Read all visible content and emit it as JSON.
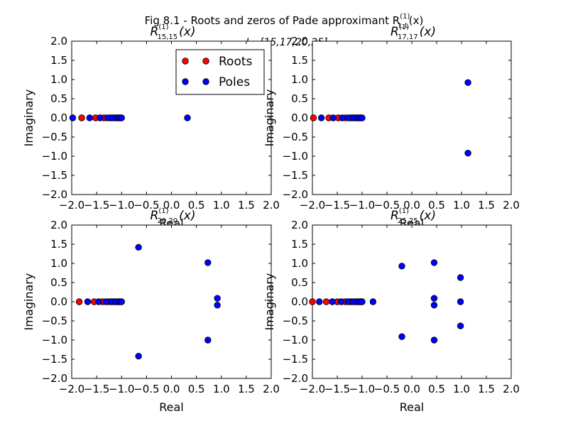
{
  "figure": {
    "suptitle": "Fig 8.1 - Roots and zeros of Pade approximant R",
    "suptitle_super": "(1)",
    "suptitle_sub": "L,L",
    "suptitle_arg": "(x)",
    "subtitle_math": "L=[15,17,20,25]"
  },
  "colors": {
    "roots": "#ff0000",
    "poles": "#0000ff",
    "marker_edge": "#000000",
    "axes": "#000000",
    "background": "#ffffff"
  },
  "legend": {
    "placement": "upper-center of first panel",
    "entries": [
      {
        "label": "Roots",
        "color": "#ff0000"
      },
      {
        "label": "Poles",
        "color": "#0000ff"
      }
    ]
  },
  "chart_data": [
    {
      "type": "scatter",
      "title": "R",
      "title_super": "(1)",
      "title_sub": "15,15",
      "title_arg": "(x)",
      "xlabel": "Real",
      "ylabel": "Imaginary",
      "xlim": [
        -2.0,
        2.0
      ],
      "ylim": [
        -2.0,
        2.0
      ],
      "xticks": [
        "−2.0",
        "−1.5",
        "−1.0",
        "−0.5",
        "0.0",
        "0.5",
        "1.0",
        "1.5",
        "2.0"
      ],
      "yticks": [
        "2.0",
        "1.5",
        "1.0",
        "0.5",
        "0.0",
        "−0.5",
        "−1.0",
        "−1.5",
        "−2.0"
      ],
      "series": [
        {
          "name": "Roots",
          "points": [
            [
              -1.8,
              0
            ],
            [
              -1.52,
              0
            ],
            [
              -1.35,
              0
            ],
            [
              -1.22,
              0
            ],
            [
              -1.13,
              0
            ],
            [
              -1.07,
              0
            ],
            [
              -1.02,
              0
            ]
          ]
        },
        {
          "name": "Poles",
          "points": [
            [
              -1.98,
              0
            ],
            [
              -1.64,
              0
            ],
            [
              -1.43,
              0
            ],
            [
              -1.28,
              0
            ],
            [
              -1.18,
              0
            ],
            [
              -1.1,
              0
            ],
            [
              -1.04,
              0
            ],
            [
              -1.0,
              0
            ],
            [
              0.32,
              0
            ]
          ]
        }
      ]
    },
    {
      "type": "scatter",
      "title": "R",
      "title_super": "(1)",
      "title_sub": "17,17",
      "title_arg": "(x)",
      "xlabel": "Real",
      "ylabel": "Imaginary",
      "xlim": [
        -2.0,
        2.0
      ],
      "ylim": [
        -2.0,
        2.0
      ],
      "xticks": [
        "−2.0",
        "−1.5",
        "−1.0",
        "−0.5",
        "0.0",
        "0.5",
        "1.0",
        "1.5",
        "2.0"
      ],
      "yticks": [
        "2.0",
        "1.5",
        "1.0",
        "0.5",
        "0.0",
        "−0.5",
        "−1.0",
        "−1.5",
        "−2.0"
      ],
      "series": [
        {
          "name": "Roots",
          "points": [
            [
              -1.98,
              0
            ],
            [
              -1.67,
              0
            ],
            [
              -1.48,
              0
            ],
            [
              -1.33,
              0
            ],
            [
              -1.22,
              0
            ],
            [
              -1.14,
              0
            ],
            [
              -1.08,
              0
            ],
            [
              -1.03,
              0
            ]
          ]
        },
        {
          "name": "Poles",
          "points": [
            [
              -1.82,
              0
            ],
            [
              -1.58,
              0
            ],
            [
              -1.4,
              0
            ],
            [
              -1.27,
              0
            ],
            [
              -1.18,
              0
            ],
            [
              -1.11,
              0
            ],
            [
              -1.05,
              0
            ],
            [
              -1.0,
              0
            ],
            [
              1.13,
              0.92
            ],
            [
              1.13,
              -0.92
            ]
          ]
        }
      ]
    },
    {
      "type": "scatter",
      "title": "R",
      "title_super": "(1)",
      "title_sub": "20,20",
      "title_arg": "(x)",
      "xlabel": "Real",
      "ylabel": "Imaginary",
      "xlim": [
        -2.0,
        2.0
      ],
      "ylim": [
        -2.0,
        2.0
      ],
      "xticks": [
        "−2.0",
        "−1.5",
        "−1.0",
        "−0.5",
        "0.0",
        "0.5",
        "1.0",
        "1.5",
        "2.0"
      ],
      "yticks": [
        "2.0",
        "1.5",
        "1.0",
        "0.5",
        "0.0",
        "−0.5",
        "−1.0",
        "−1.5",
        "−2.0"
      ],
      "series": [
        {
          "name": "Roots",
          "points": [
            [
              -1.85,
              0
            ],
            [
              -1.55,
              0
            ],
            [
              -1.38,
              0
            ],
            [
              -1.25,
              0
            ],
            [
              -1.15,
              0
            ],
            [
              -1.08,
              0
            ],
            [
              -1.03,
              0
            ]
          ]
        },
        {
          "name": "Poles",
          "points": [
            [
              -1.68,
              0
            ],
            [
              -1.46,
              0
            ],
            [
              -1.31,
              0
            ],
            [
              -1.2,
              0
            ],
            [
              -1.12,
              0
            ],
            [
              -1.05,
              0
            ],
            [
              -1.0,
              0
            ],
            [
              -0.66,
              1.42
            ],
            [
              -0.66,
              -1.42
            ],
            [
              0.73,
              1.02
            ],
            [
              0.73,
              -1.0
            ],
            [
              0.92,
              0.09
            ],
            [
              0.92,
              -0.09
            ]
          ]
        }
      ]
    },
    {
      "type": "scatter",
      "title": "R",
      "title_super": "(1)",
      "title_sub": "25,25",
      "title_arg": "(x)",
      "xlabel": "Real",
      "ylabel": "Imaginary",
      "xlim": [
        -2.0,
        2.0
      ],
      "ylim": [
        -2.0,
        2.0
      ],
      "xticks": [
        "−2.0",
        "−1.5",
        "−1.0",
        "−0.5",
        "0.0",
        "0.5",
        "1.0",
        "1.5",
        "2.0"
      ],
      "yticks": [
        "2.0",
        "1.5",
        "1.0",
        "0.5",
        "0.0",
        "−0.5",
        "−1.0",
        "−1.5",
        "−2.0"
      ],
      "series": [
        {
          "name": "Roots",
          "points": [
            [
              -2.0,
              0
            ],
            [
              -1.72,
              0
            ],
            [
              -1.5,
              0
            ],
            [
              -1.34,
              0
            ],
            [
              -1.22,
              0
            ],
            [
              -1.13,
              0
            ],
            [
              -1.07,
              0
            ],
            [
              -1.02,
              0
            ]
          ]
        },
        {
          "name": "Poles",
          "points": [
            [
              -1.86,
              0
            ],
            [
              -1.6,
              0
            ],
            [
              -1.42,
              0
            ],
            [
              -1.28,
              0
            ],
            [
              -1.18,
              0
            ],
            [
              -1.1,
              0
            ],
            [
              -1.04,
              0
            ],
            [
              -1.0,
              0
            ],
            [
              -0.78,
              0
            ],
            [
              -0.2,
              0.93
            ],
            [
              -0.2,
              -0.91
            ],
            [
              0.45,
              1.02
            ],
            [
              0.45,
              0.09
            ],
            [
              0.45,
              -0.09
            ],
            [
              0.45,
              -1.0
            ],
            [
              0.98,
              0.63
            ],
            [
              0.98,
              0.0
            ],
            [
              0.98,
              -0.63
            ]
          ]
        }
      ]
    }
  ]
}
